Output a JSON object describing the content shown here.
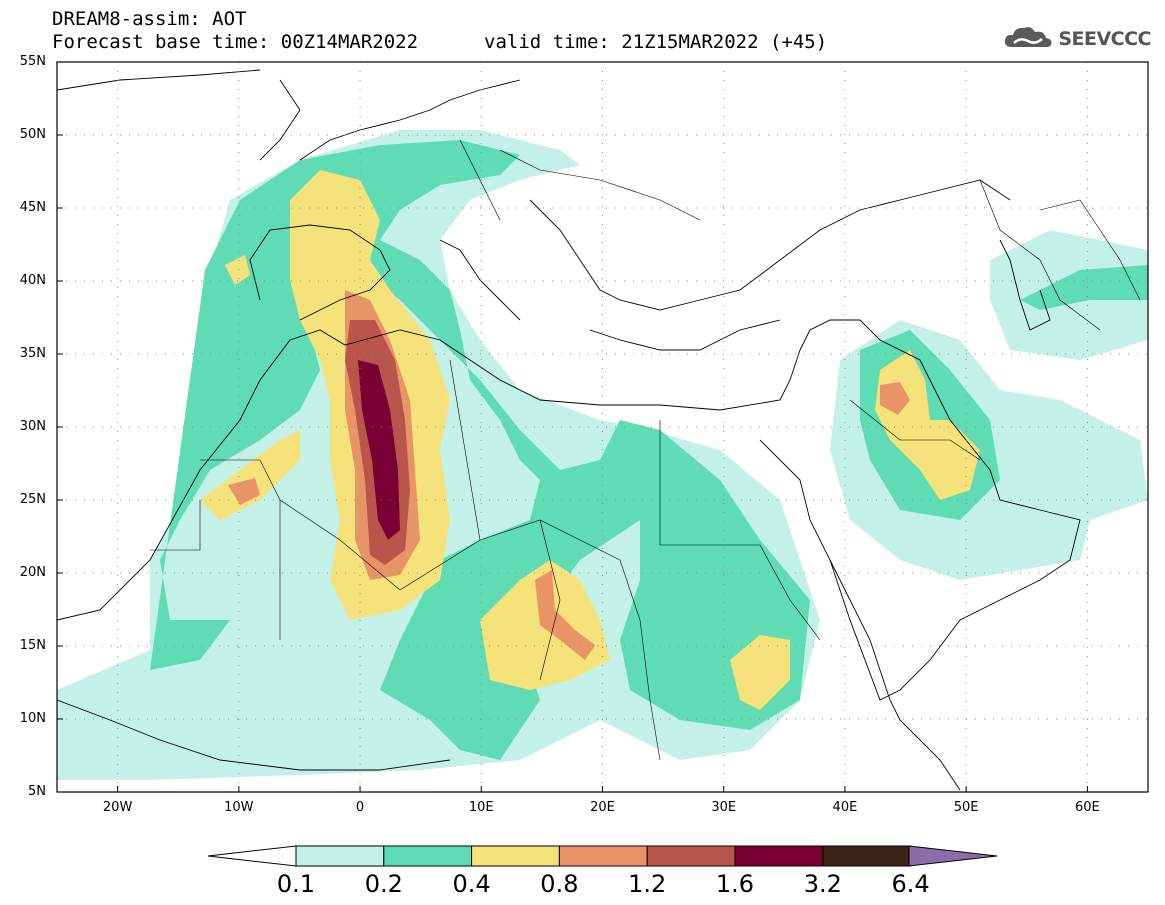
{
  "header": {
    "title_line1": "DREAM8-assim: AOT",
    "title_line2": "Forecast base time: 00Z14MAR2022",
    "valid_time": "valid time: 21Z15MAR2022 (+45)",
    "logo_text": "SEEVCCC",
    "logo_icon": "cloud-icon"
  },
  "map": {
    "lon_labels": [
      "20W",
      "10W",
      "0",
      "10E",
      "20E",
      "30E",
      "40E",
      "50E",
      "60E"
    ],
    "lat_labels": [
      "55N",
      "50N",
      "45N",
      "40N",
      "35N",
      "30N",
      "25N",
      "20N",
      "15N",
      "10N",
      "5N"
    ]
  },
  "colorbar": {
    "labels": [
      "0.1",
      "0.2",
      "0.4",
      "0.8",
      "1.2",
      "1.6",
      "3.2",
      "6.4"
    ],
    "colors": [
      "#c4f1e7",
      "#5fdcb4",
      "#f6e27a",
      "#e99466",
      "#b9554a",
      "#7a0033",
      "#3b2316",
      "#8c6ba8"
    ]
  }
}
